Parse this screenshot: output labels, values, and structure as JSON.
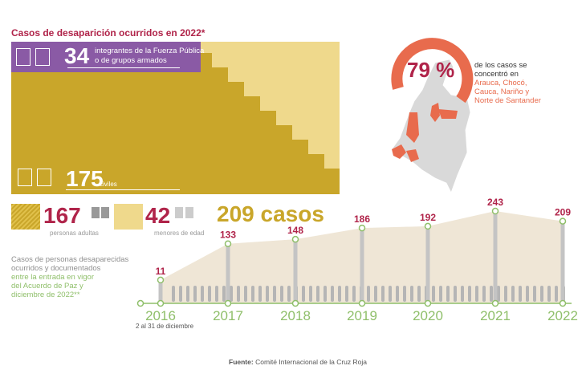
{
  "title": "Casos de desaparición ocurridos en 2022*",
  "breakdown": {
    "security_forces": {
      "value": "34",
      "line1": "integrantes de la Fuerza Pública",
      "line2": "o de grupos armados"
    },
    "civilians": {
      "value": "175",
      "label": "civiles"
    },
    "adults": {
      "value": "167",
      "label": "personas adultas"
    },
    "minors": {
      "value": "42",
      "label": "menores de edad"
    },
    "total": "209 casos"
  },
  "map": {
    "percent": "79 %",
    "line1": "de los casos se",
    "line2": "concentró en",
    "line3": "Arauca, Chocó,",
    "line4": "Cauca, Nariño y",
    "line5": "Norte de Santander",
    "map_color": "#d9d9d9",
    "highlight_color": "#e86b4d"
  },
  "description": {
    "line1": "Casos de personas desaparecidas",
    "line2": "ocurridos y documentados",
    "line3": "entre la entrada en vigor",
    "line4": "del Acuerdo de Paz y",
    "line5": "diciembre de 2022**"
  },
  "timeline_note": "2 al 31 de diciembre",
  "source_label": "Fuente:",
  "source_text": "Comité Internacional de la Cruz Roja",
  "colors": {
    "accent_red": "#b0244a",
    "gold": "#c9a62a",
    "light_gold": "#efd98c",
    "purple": "#8a5aa5",
    "green": "#8fbf6a",
    "area": "#efe6d6"
  },
  "chart_data": {
    "type": "area",
    "categories": [
      "2016",
      "2017",
      "2018",
      "2019",
      "2020",
      "2021",
      "2022"
    ],
    "values": [
      11,
      133,
      148,
      186,
      192,
      243,
      209
    ],
    "title": "",
    "xlabel": "",
    "ylabel": ""
  }
}
